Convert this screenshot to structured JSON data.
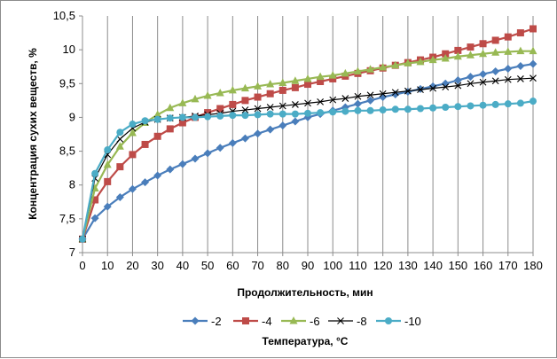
{
  "chart_data": {
    "type": "line",
    "title": "",
    "xlabel": "Продолжительность, мин",
    "ylabel": "Концентрация сухих веществ, %",
    "legend_title": "Температура, °C",
    "legend_position": "bottom",
    "xlim": [
      0,
      180
    ],
    "ylim": [
      7,
      10.5
    ],
    "x_ticks": [
      "0",
      "10",
      "20",
      "30",
      "40",
      "50",
      "60",
      "70",
      "80",
      "90",
      "100",
      "110",
      "120",
      "130",
      "140",
      "150",
      "160",
      "170",
      "180"
    ],
    "y_ticks": [
      "7",
      "7,5",
      "8",
      "8,5",
      "9",
      "9,5",
      "10",
      "10,5"
    ],
    "grid": "vertical",
    "x": [
      0,
      5,
      10,
      15,
      20,
      25,
      30,
      35,
      40,
      45,
      50,
      55,
      60,
      65,
      70,
      75,
      80,
      85,
      90,
      95,
      100,
      105,
      110,
      115,
      120,
      125,
      130,
      135,
      140,
      145,
      150,
      155,
      160,
      165,
      170,
      175,
      180
    ],
    "series": [
      {
        "name": "-2",
        "color": "#4a7ebb",
        "marker": "diamond",
        "values": [
          7.2,
          7.51,
          7.68,
          7.82,
          7.94,
          8.04,
          8.14,
          8.23,
          8.31,
          8.39,
          8.47,
          8.55,
          8.62,
          8.69,
          8.76,
          8.82,
          8.88,
          8.94,
          9.0,
          9.05,
          9.1,
          9.15,
          9.2,
          9.25,
          9.3,
          9.34,
          9.38,
          9.42,
          9.46,
          9.5,
          9.55,
          9.6,
          9.64,
          9.68,
          9.72,
          9.76,
          9.79
        ]
      },
      {
        "name": "-4",
        "color": "#be4b48",
        "marker": "square",
        "values": [
          7.2,
          7.78,
          8.05,
          8.27,
          8.45,
          8.6,
          8.72,
          8.83,
          8.92,
          9.0,
          9.07,
          9.13,
          9.19,
          9.25,
          9.3,
          9.35,
          9.4,
          9.44,
          9.49,
          9.53,
          9.57,
          9.61,
          9.65,
          9.69,
          9.73,
          9.77,
          9.81,
          9.85,
          9.89,
          9.94,
          9.99,
          10.04,
          10.09,
          10.14,
          10.19,
          10.25,
          10.31
        ]
      },
      {
        "name": "-6",
        "color": "#98b954",
        "marker": "triangle",
        "values": [
          7.2,
          7.95,
          8.3,
          8.57,
          8.77,
          8.92,
          9.04,
          9.14,
          9.21,
          9.27,
          9.32,
          9.36,
          9.4,
          9.43,
          9.46,
          9.49,
          9.51,
          9.54,
          9.57,
          9.6,
          9.62,
          9.65,
          9.68,
          9.71,
          9.74,
          9.77,
          9.8,
          9.82,
          9.85,
          9.87,
          9.9,
          9.92,
          9.94,
          9.96,
          9.97,
          9.98,
          9.98
        ]
      },
      {
        "name": "-8",
        "color": "#000000",
        "marker": "x",
        "values": [
          7.2,
          8.1,
          8.45,
          8.68,
          8.84,
          8.93,
          8.97,
          8.99,
          9.0,
          9.02,
          9.04,
          9.06,
          9.09,
          9.11,
          9.13,
          9.15,
          9.17,
          9.19,
          9.21,
          9.23,
          9.26,
          9.28,
          9.31,
          9.33,
          9.35,
          9.37,
          9.39,
          9.41,
          9.43,
          9.45,
          9.47,
          9.5,
          9.52,
          9.54,
          9.56,
          9.57,
          9.58
        ]
      },
      {
        "name": "-10",
        "color": "#4bacc6",
        "marker": "circle",
        "values": [
          7.2,
          8.17,
          8.52,
          8.78,
          8.9,
          8.95,
          8.97,
          8.99,
          9.0,
          9.0,
          9.01,
          9.02,
          9.03,
          9.03,
          9.04,
          9.05,
          9.05,
          9.05,
          9.06,
          9.07,
          9.08,
          9.09,
          9.1,
          9.1,
          9.11,
          9.12,
          9.12,
          9.13,
          9.14,
          9.15,
          9.16,
          9.17,
          9.18,
          9.19,
          9.2,
          9.21,
          9.24
        ]
      }
    ]
  }
}
